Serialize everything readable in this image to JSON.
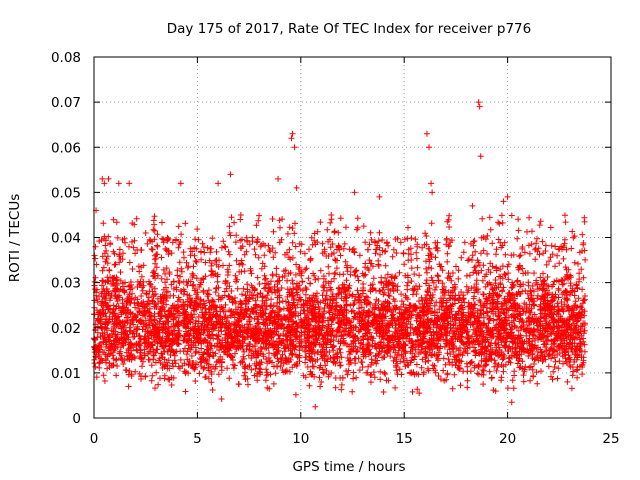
{
  "chart_data": {
    "type": "scatter",
    "title": "Day 175 of 2017, Rate Of TEC Index for receiver p776",
    "xlabel": "GPS time / hours",
    "ylabel": "ROTI / TECUs",
    "xlim": [
      0,
      25
    ],
    "ylim": [
      0,
      0.08
    ],
    "x_ticks": [
      0,
      5,
      10,
      15,
      20,
      25
    ],
    "x_tick_labels": [
      "0",
      "5",
      "10",
      "15",
      "20",
      "25"
    ],
    "y_ticks": [
      0,
      0.01,
      0.02,
      0.03,
      0.04,
      0.05,
      0.06,
      0.07,
      0.08
    ],
    "y_tick_labels": [
      "0",
      "0.01",
      "0.02",
      "0.03",
      "0.04",
      "0.05",
      "0.06",
      "0.07",
      "0.08"
    ],
    "grid": true,
    "legend": "none",
    "marker": "plus",
    "color": "#ff0000",
    "data_x_range": [
      0,
      23.75
    ],
    "band": {
      "typical_min": 0.005,
      "typical_max": 0.035
    },
    "series": [
      {
        "x": [
          0.1,
          0.4,
          0.5,
          0.7,
          1.2,
          1.7,
          2.5,
          4.2,
          6.0,
          6.6,
          7.1,
          8.9,
          9.55,
          9.6,
          9.7,
          9.8,
          10.7,
          12.6,
          13.8,
          16.1,
          16.2,
          16.3,
          16.35,
          18.3,
          18.6,
          18.65,
          18.7,
          19.8,
          20.0,
          20.2,
          22.3,
          23.6
        ],
        "y": [
          0.046,
          0.053,
          0.052,
          0.053,
          0.052,
          0.052,
          0.041,
          0.052,
          0.052,
          0.054,
          0.045,
          0.053,
          0.062,
          0.063,
          0.06,
          0.051,
          0.0025,
          0.05,
          0.049,
          0.063,
          0.06,
          0.052,
          0.05,
          0.047,
          0.07,
          0.069,
          0.058,
          0.048,
          0.049,
          0.0035,
          0.038,
          0.037
        ]
      }
    ]
  }
}
